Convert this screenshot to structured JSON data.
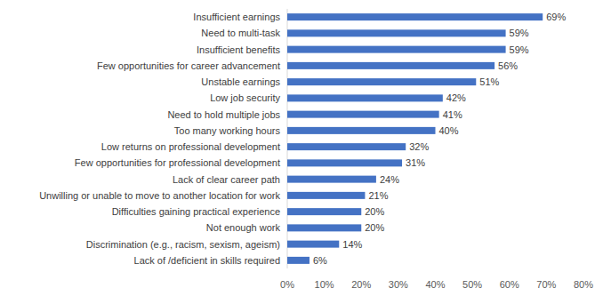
{
  "chart_data": {
    "type": "bar",
    "orientation": "horizontal",
    "categories": [
      "Insufficient earnings",
      "Need to multi-task",
      "Insufficient benefits",
      "Few opportunities for career advancement",
      "Unstable earnings",
      "Low job security",
      "Need to hold multiple jobs",
      "Too many working hours",
      "Low returns on professional development",
      "Few opportunities for professional development",
      "Lack of clear career path",
      "Unwilling or unable to move to another location for work",
      "Difficulties gaining practical experience",
      "Not enough work",
      "Discrimination (e.g., racism, sexism, ageism)",
      "Lack of /deficient in skills required"
    ],
    "values": [
      69,
      59,
      59,
      56,
      51,
      42,
      41,
      40,
      32,
      31,
      24,
      21,
      20,
      20,
      14,
      6
    ],
    "value_labels": [
      "69%",
      "59%",
      "59%",
      "56%",
      "51%",
      "42%",
      "41%",
      "40%",
      "32%",
      "31%",
      "24%",
      "21%",
      "20%",
      "20%",
      "14%",
      "6%"
    ],
    "color": "#4472c4",
    "xlim": [
      0,
      80
    ],
    "xticks": [
      {
        "value": 0,
        "label": "0%"
      },
      {
        "value": 10,
        "label": "10%"
      },
      {
        "value": 20,
        "label": "20%"
      },
      {
        "value": 30,
        "label": "30%"
      },
      {
        "value": 40,
        "label": "40%"
      },
      {
        "value": 50,
        "label": "50%"
      },
      {
        "value": 60,
        "label": "60%"
      },
      {
        "value": 70,
        "label": "70%"
      },
      {
        "value": 80,
        "label": "80%"
      }
    ],
    "grid": false,
    "data_labels": true
  }
}
